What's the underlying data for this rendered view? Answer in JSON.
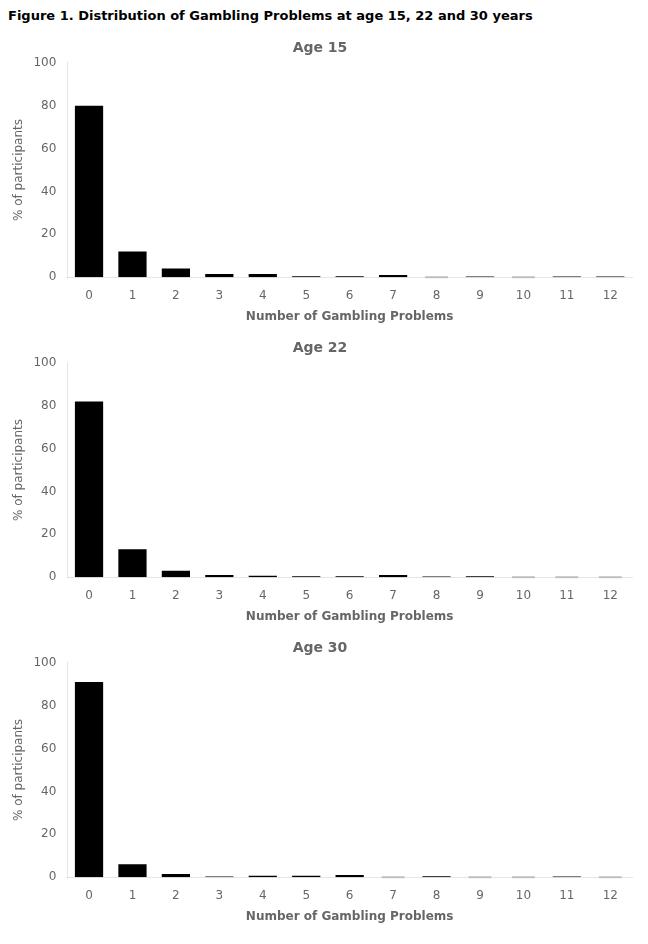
{
  "title": "Figure 1. Distribution of Gambling Problems at age 15, 22 and 30 years",
  "chart_data": [
    {
      "type": "bar",
      "title": "Age 15",
      "categories": [
        0,
        1,
        2,
        3,
        4,
        5,
        6,
        7,
        8,
        9,
        10,
        11,
        12
      ],
      "values": [
        80,
        12,
        4,
        1.5,
        1.5,
        0.5,
        0.5,
        1.0,
        0,
        0.3,
        0,
        0.3,
        0.3
      ],
      "colors": [
        "#000000",
        "#000000",
        "#000000",
        "#000000",
        "#000000",
        "#000000",
        "#000000",
        "#000000",
        "#c0c0c0",
        "#000000",
        "#c0c0c0",
        "#000000",
        "#000000"
      ],
      "x_label": "Number of Gambling Problems",
      "y_label": "% of participants",
      "ylim": [
        0,
        100
      ],
      "yticks": [
        0,
        20,
        40,
        60,
        80,
        100
      ],
      "grid": false
    },
    {
      "type": "bar",
      "title": "Age 22",
      "categories": [
        0,
        1,
        2,
        3,
        4,
        5,
        6,
        7,
        8,
        9,
        10,
        11,
        12
      ],
      "values": [
        82,
        13,
        3,
        1.0,
        0.7,
        0.5,
        0.5,
        1.0,
        0.3,
        0.5,
        0,
        0,
        0
      ],
      "colors": [
        "#000000",
        "#000000",
        "#000000",
        "#000000",
        "#000000",
        "#000000",
        "#000000",
        "#000000",
        "#000000",
        "#000000",
        "#c0c0c0",
        "#c0c0c0",
        "#c0c0c0"
      ],
      "x_label": "Number of Gambling Problems",
      "y_label": "% of participants",
      "ylim": [
        0,
        100
      ],
      "yticks": [
        0,
        20,
        40,
        60,
        80,
        100
      ],
      "grid": false
    },
    {
      "type": "bar",
      "title": "Age 30",
      "categories": [
        0,
        1,
        2,
        3,
        4,
        5,
        6,
        7,
        8,
        9,
        10,
        11,
        12
      ],
      "values": [
        91,
        6,
        1.5,
        0.3,
        0.7,
        0.7,
        1.0,
        0,
        0.5,
        0,
        0,
        0.3,
        0
      ],
      "colors": [
        "#000000",
        "#000000",
        "#000000",
        "#000000",
        "#000000",
        "#000000",
        "#000000",
        "#c0c0c0",
        "#000000",
        "#c0c0c0",
        "#c0c0c0",
        "#000000",
        "#c0c0c0"
      ],
      "x_label": "Number of Gambling Problems",
      "y_label": "% of participants",
      "ylim": [
        0,
        100
      ],
      "yticks": [
        0,
        20,
        40,
        60,
        80,
        100
      ],
      "grid": false
    }
  ]
}
